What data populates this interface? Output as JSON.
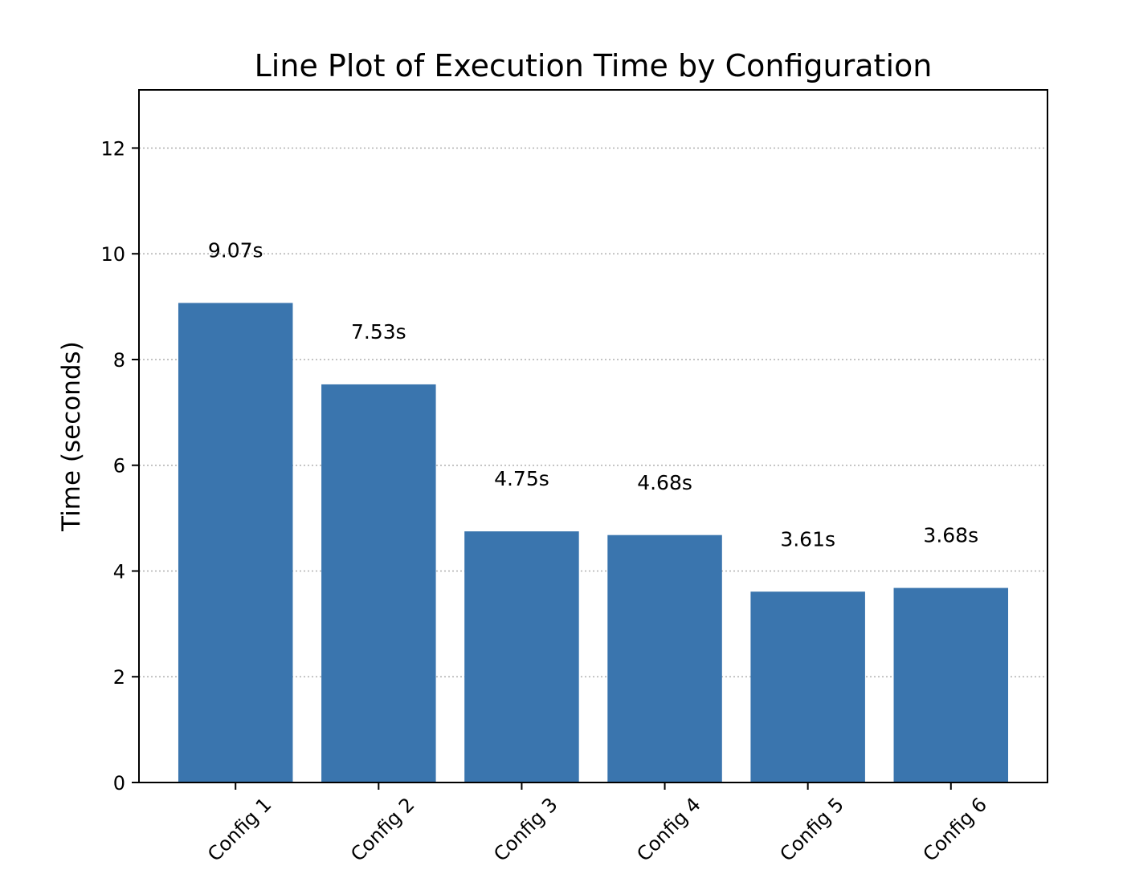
{
  "chart_data": {
    "type": "bar",
    "title": "Line Plot of Execution Time by Configuration",
    "xlabel": "",
    "ylabel": "Time (seconds)",
    "categories": [
      "Config 1",
      "Config 2",
      "Config 3",
      "Config 4",
      "Config 5",
      "Config 6"
    ],
    "values": [
      9.07,
      7.53,
      4.75,
      4.68,
      3.61,
      3.68
    ],
    "data_labels": [
      "9.07s",
      "7.53s",
      "4.75s",
      "4.68s",
      "3.61s",
      "3.68s"
    ],
    "ylim": [
      0,
      13.1
    ],
    "yticks": [
      "0",
      "2",
      "4",
      "6",
      "8",
      "10",
      "12"
    ],
    "grid": "horizontal dotted",
    "bar_color": "#3a75ae",
    "grid_color": "#b0b0b0",
    "legend": "none"
  }
}
